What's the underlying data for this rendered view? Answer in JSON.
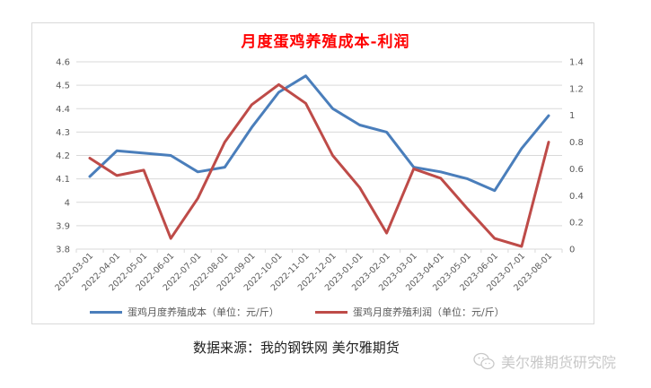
{
  "chart_data": {
    "type": "line",
    "title": "月度蛋鸡养殖成本-利润",
    "categories": [
      "2022-03-01",
      "2022-04-01",
      "2022-05-01",
      "2022-06-01",
      "2022-07-01",
      "2022-08-01",
      "2022-09-01",
      "2022-10-01",
      "2022-11-01",
      "2022-12-01",
      "2023-01-01",
      "2023-02-01",
      "2023-03-01",
      "2023-04-01",
      "2023-05-01",
      "2023-06-01",
      "2023-07-01",
      "2023-08-01"
    ],
    "series": [
      {
        "name": "蛋鸡月度养殖成本（单位：元/斤）",
        "axis": "left",
        "color": "#4a7ebb",
        "values": [
          4.11,
          4.22,
          4.21,
          4.2,
          4.13,
          4.15,
          4.32,
          4.47,
          4.54,
          4.4,
          4.33,
          4.3,
          4.15,
          4.13,
          4.1,
          4.05,
          4.23,
          4.37
        ]
      },
      {
        "name": "蛋鸡月度养殖利润（单位：元/斤）",
        "axis": "right",
        "color": "#be4b48",
        "values": [
          0.68,
          0.55,
          0.59,
          0.08,
          0.38,
          0.8,
          1.08,
          1.23,
          1.09,
          0.7,
          0.46,
          0.12,
          0.6,
          0.53,
          0.3,
          0.08,
          0.02,
          0.8
        ]
      }
    ],
    "left_axis": {
      "ylim": [
        3.8,
        4.6
      ],
      "ticks": [
        "4.6",
        "4.5",
        "4.4",
        "4.3",
        "4.2",
        "4.1",
        "4",
        "3.9",
        "3.8"
      ]
    },
    "right_axis": {
      "ylim": [
        0,
        1.4
      ],
      "ticks": [
        "1.4",
        "1.2",
        "1",
        "0.8",
        "0.6",
        "0.4",
        "0.2",
        "0"
      ]
    },
    "xlabel": "",
    "ylabel": "",
    "grid": true,
    "legend_position": "bottom"
  },
  "legend": {
    "cost_label": "蛋鸡月度养殖成本（单位：元/斤）",
    "profit_label": "蛋鸡月度养殖利润（单位：元/斤）"
  },
  "source_text": "数据来源：我的钢铁网 美尔雅期货",
  "watermark_text": "美尔雅期货研究院",
  "colors": {
    "cost": "#4a7ebb",
    "profit": "#be4b48",
    "title": "#ff0000",
    "grid": "#d9d9d9"
  }
}
